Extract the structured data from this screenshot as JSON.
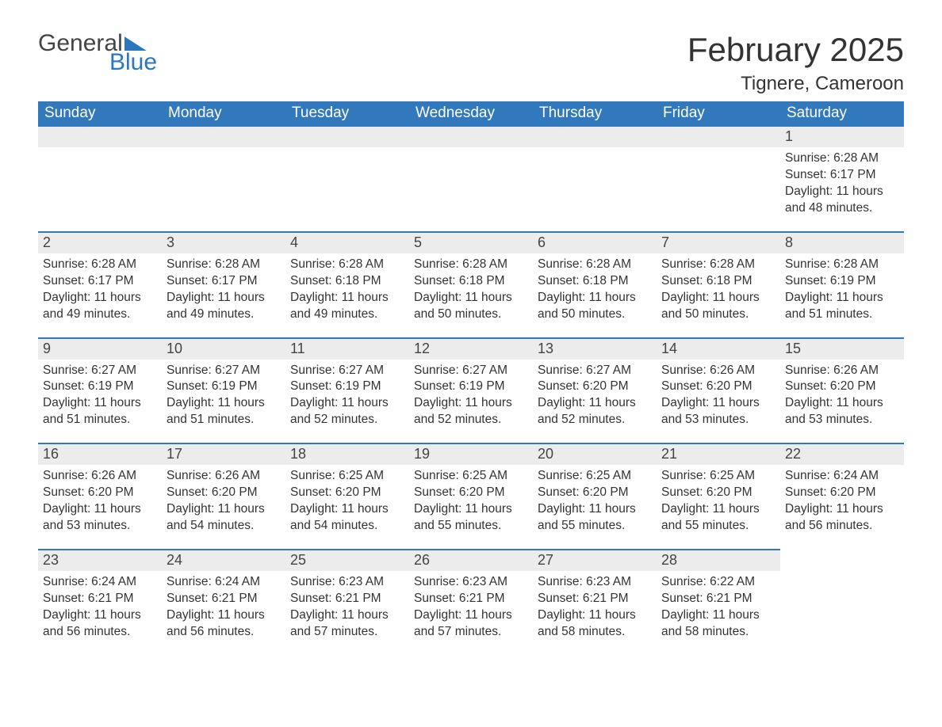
{
  "logo": {
    "text1": "General",
    "text2": "Blue",
    "brand_color": "#2b77bd"
  },
  "title": "February 2025",
  "location": "Tignere, Cameroon",
  "colors": {
    "header_bg": "#3178bd",
    "header_text": "#ffffff",
    "daynum_bg": "#ececec",
    "daynum_border": "#3178bd",
    "body_text": "#333333"
  },
  "day_names": [
    "Sunday",
    "Monday",
    "Tuesday",
    "Wednesday",
    "Thursday",
    "Friday",
    "Saturday"
  ],
  "weeks": [
    [
      null,
      null,
      null,
      null,
      null,
      null,
      {
        "n": "1",
        "sr": "6:28 AM",
        "ss": "6:17 PM",
        "dl": "11 hours and 48 minutes."
      }
    ],
    [
      {
        "n": "2",
        "sr": "6:28 AM",
        "ss": "6:17 PM",
        "dl": "11 hours and 49 minutes."
      },
      {
        "n": "3",
        "sr": "6:28 AM",
        "ss": "6:17 PM",
        "dl": "11 hours and 49 minutes."
      },
      {
        "n": "4",
        "sr": "6:28 AM",
        "ss": "6:18 PM",
        "dl": "11 hours and 49 minutes."
      },
      {
        "n": "5",
        "sr": "6:28 AM",
        "ss": "6:18 PM",
        "dl": "11 hours and 50 minutes."
      },
      {
        "n": "6",
        "sr": "6:28 AM",
        "ss": "6:18 PM",
        "dl": "11 hours and 50 minutes."
      },
      {
        "n": "7",
        "sr": "6:28 AM",
        "ss": "6:18 PM",
        "dl": "11 hours and 50 minutes."
      },
      {
        "n": "8",
        "sr": "6:28 AM",
        "ss": "6:19 PM",
        "dl": "11 hours and 51 minutes."
      }
    ],
    [
      {
        "n": "9",
        "sr": "6:27 AM",
        "ss": "6:19 PM",
        "dl": "11 hours and 51 minutes."
      },
      {
        "n": "10",
        "sr": "6:27 AM",
        "ss": "6:19 PM",
        "dl": "11 hours and 51 minutes."
      },
      {
        "n": "11",
        "sr": "6:27 AM",
        "ss": "6:19 PM",
        "dl": "11 hours and 52 minutes."
      },
      {
        "n": "12",
        "sr": "6:27 AM",
        "ss": "6:19 PM",
        "dl": "11 hours and 52 minutes."
      },
      {
        "n": "13",
        "sr": "6:27 AM",
        "ss": "6:20 PM",
        "dl": "11 hours and 52 minutes."
      },
      {
        "n": "14",
        "sr": "6:26 AM",
        "ss": "6:20 PM",
        "dl": "11 hours and 53 minutes."
      },
      {
        "n": "15",
        "sr": "6:26 AM",
        "ss": "6:20 PM",
        "dl": "11 hours and 53 minutes."
      }
    ],
    [
      {
        "n": "16",
        "sr": "6:26 AM",
        "ss": "6:20 PM",
        "dl": "11 hours and 53 minutes."
      },
      {
        "n": "17",
        "sr": "6:26 AM",
        "ss": "6:20 PM",
        "dl": "11 hours and 54 minutes."
      },
      {
        "n": "18",
        "sr": "6:25 AM",
        "ss": "6:20 PM",
        "dl": "11 hours and 54 minutes."
      },
      {
        "n": "19",
        "sr": "6:25 AM",
        "ss": "6:20 PM",
        "dl": "11 hours and 55 minutes."
      },
      {
        "n": "20",
        "sr": "6:25 AM",
        "ss": "6:20 PM",
        "dl": "11 hours and 55 minutes."
      },
      {
        "n": "21",
        "sr": "6:25 AM",
        "ss": "6:20 PM",
        "dl": "11 hours and 55 minutes."
      },
      {
        "n": "22",
        "sr": "6:24 AM",
        "ss": "6:20 PM",
        "dl": "11 hours and 56 minutes."
      }
    ],
    [
      {
        "n": "23",
        "sr": "6:24 AM",
        "ss": "6:21 PM",
        "dl": "11 hours and 56 minutes."
      },
      {
        "n": "24",
        "sr": "6:24 AM",
        "ss": "6:21 PM",
        "dl": "11 hours and 56 minutes."
      },
      {
        "n": "25",
        "sr": "6:23 AM",
        "ss": "6:21 PM",
        "dl": "11 hours and 57 minutes."
      },
      {
        "n": "26",
        "sr": "6:23 AM",
        "ss": "6:21 PM",
        "dl": "11 hours and 57 minutes."
      },
      {
        "n": "27",
        "sr": "6:23 AM",
        "ss": "6:21 PM",
        "dl": "11 hours and 58 minutes."
      },
      {
        "n": "28",
        "sr": "6:22 AM",
        "ss": "6:21 PM",
        "dl": "11 hours and 58 minutes."
      },
      null
    ]
  ],
  "labels": {
    "sunrise": "Sunrise: ",
    "sunset": "Sunset: ",
    "daylight": "Daylight: "
  }
}
